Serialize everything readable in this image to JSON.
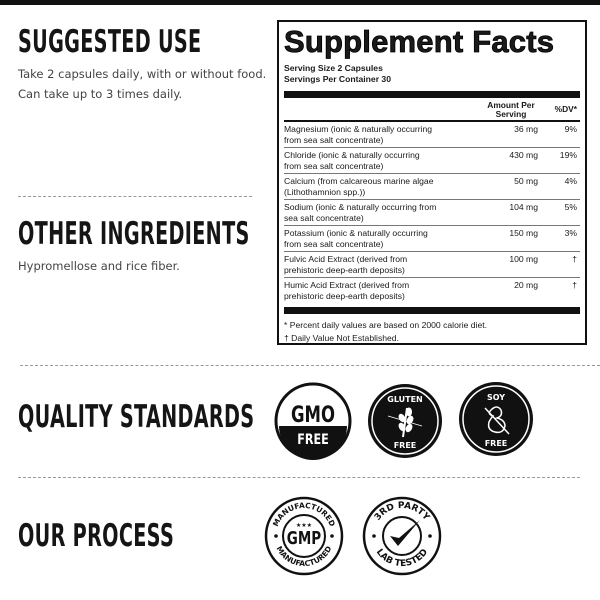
{
  "sections": {
    "suggested_use": {
      "title": "SUGGESTED USE",
      "text": "Take 2 capsules daily, with or without food. Can take up to 3 times daily."
    },
    "other_ingredients": {
      "title": "OTHER INGREDIENTS",
      "text": "Hypromellose and rice fiber."
    },
    "quality_standards": {
      "title": "QUALITY STANDARDS"
    },
    "our_process": {
      "title": "OUR PROCESS"
    }
  },
  "facts": {
    "title": "Supplement Facts",
    "serving_size": "Serving Size 2 Capsules",
    "servings_per_container": "Servings Per Container 30",
    "col_amount": "Amount Per Serving",
    "col_dv": "%DV*",
    "rows": [
      {
        "name": "Magnesium (ionic & naturally occurring from sea salt concentrate)",
        "amount": "36 mg",
        "dv": "9%"
      },
      {
        "name": "Chloride (ionic & naturally occurring from sea salt concentrate)",
        "amount": "430 mg",
        "dv": "19%"
      },
      {
        "name": "Calcium (from calcareous marine algae (Lithothamnion spp.))",
        "amount": "50 mg",
        "dv": "4%"
      },
      {
        "name": "Sodium (ionic & naturally occurring from sea salt concentrate)",
        "amount": "104 mg",
        "dv": "5%"
      },
      {
        "name": "Potassium (ionic & naturally occurring from sea salt concentrate)",
        "amount": "150 mg",
        "dv": "3%"
      },
      {
        "name": "Fulvic Acid Extract (derived from prehistoric deep-earth deposits)",
        "amount": "100 mg",
        "dv": "†"
      },
      {
        "name": "Humic Acid Extract (derived from prehistoric deep-earth deposits)",
        "amount": "20 mg",
        "dv": "†"
      }
    ],
    "footnote1": "* Percent daily values are based on 2000 calorie diet.",
    "footnote2": "† Daily Value Not Established."
  },
  "badges": {
    "gmo": {
      "top": "GMO",
      "bottom": "FREE"
    },
    "gluten": {
      "top": "GLUTEN",
      "bottom": "FREE"
    },
    "soy": {
      "top": "SOY",
      "bottom": "FREE"
    },
    "gmp": {
      "top": "MANUFACTURED",
      "center": "GMP",
      "bottom": "MANUFACTURED"
    },
    "lab": {
      "top": "3RD PARTY",
      "bottom": "LAB TESTED"
    }
  }
}
